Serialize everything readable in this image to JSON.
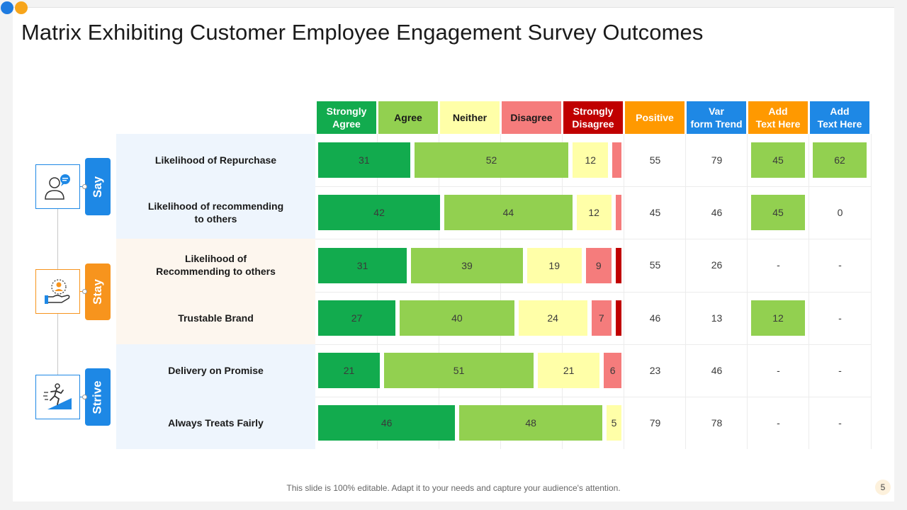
{
  "title": "Matrix Exhibiting Customer Employee Engagement Survey Outcomes",
  "columns": [
    {
      "label": "Strongly\nAgree",
      "bg": "#12ab4e",
      "fg": "#ffffff"
    },
    {
      "label": "Agree",
      "bg": "#92d050",
      "fg": "#1a1a1a"
    },
    {
      "label": "Neither",
      "bg": "#ffffa8",
      "fg": "#1a1a1a"
    },
    {
      "label": "Disagree",
      "bg": "#f57c7c",
      "fg": "#1a1a1a"
    },
    {
      "label": "Strongly\nDisagree",
      "bg": "#c00000",
      "fg": "#ffffff"
    },
    {
      "label": "Positive",
      "bg": "#ff9900",
      "fg": "#ffffff"
    },
    {
      "label": "Var\nform Trend",
      "bg": "#1e88e5",
      "fg": "#ffffff"
    },
    {
      "label": "Add\nText Here",
      "bg": "#ff9900",
      "fg": "#ffffff"
    },
    {
      "label": "Add\nText Here",
      "bg": "#1e88e5",
      "fg": "#ffffff"
    }
  ],
  "groups": [
    {
      "label": "Say",
      "color": "#1e88e5",
      "icon": "person-speech-icon"
    },
    {
      "label": "Stay",
      "color": "#f7941d",
      "icon": "hand-person-icon"
    },
    {
      "label": "Strive",
      "color": "#1e88e5",
      "icon": "runner-stairs-icon"
    }
  ],
  "rows": [
    {
      "label": "Likelihood of Repurchase",
      "bars": [
        31,
        52,
        12,
        3,
        0
      ],
      "positive": "55",
      "trend": "79",
      "text1": "45",
      "text2": "62"
    },
    {
      "label": "Likelihood of recommending\nto others",
      "bars": [
        42,
        44,
        12,
        2,
        0
      ],
      "positive": "45",
      "trend": "46",
      "text1": "45",
      "text2": "0"
    },
    {
      "label": "Likelihood of\nRecommending to others",
      "bars": [
        31,
        39,
        19,
        9,
        2
      ],
      "positive": "55",
      "trend": "26",
      "text1": "-",
      "text2": "-"
    },
    {
      "label": "Trustable Brand",
      "bars": [
        27,
        40,
        24,
        7,
        2
      ],
      "positive": "46",
      "trend": "13",
      "text1": "12",
      "text2": "-"
    },
    {
      "label": "Delivery on Promise",
      "bars": [
        21,
        51,
        21,
        6,
        0
      ],
      "positive": "23",
      "trend": "46",
      "text1": "-",
      "text2": "-"
    },
    {
      "label": "Always  Treats Fairly",
      "bars": [
        46,
        48,
        5,
        0,
        0
      ],
      "positive": "79",
      "trend": "78",
      "text1": "-",
      "text2": "-"
    }
  ],
  "footer": "This slide is 100% editable. Adapt it to your needs and capture your audience's attention.",
  "page_number": "5"
}
